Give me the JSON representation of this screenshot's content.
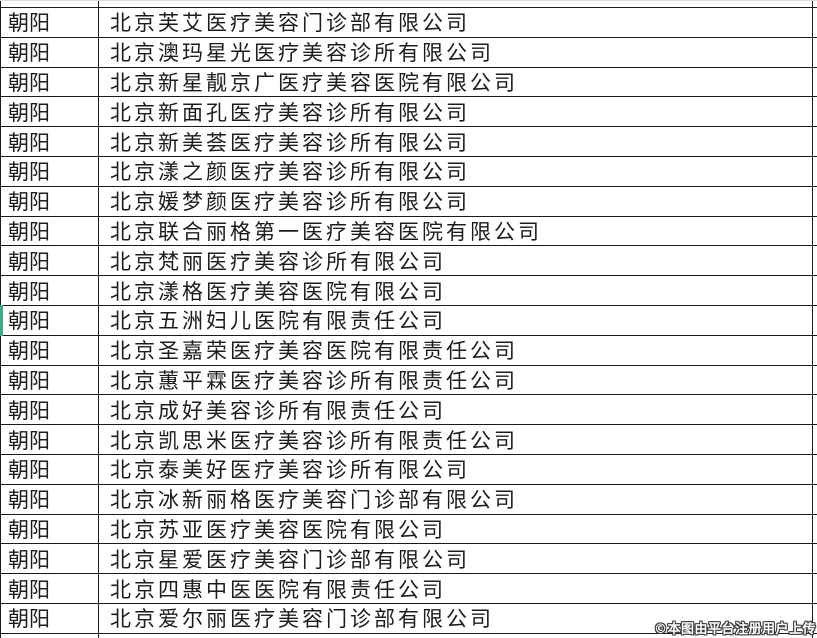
{
  "table": {
    "columns": [
      "district",
      "company_name"
    ],
    "district_repeated_value": "朝阳",
    "highlight_row_index": 10,
    "rows": [
      {
        "district": "朝阳",
        "company": "北京芙艾医疗美容门诊部有限公司"
      },
      {
        "district": "朝阳",
        "company": "北京澳玛星光医疗美容诊所有限公司"
      },
      {
        "district": "朝阳",
        "company": "北京新星靓京广医疗美容医院有限公司"
      },
      {
        "district": "朝阳",
        "company": "北京新面孔医疗美容诊所有限公司"
      },
      {
        "district": "朝阳",
        "company": "北京新美荟医疗美容诊所有限公司"
      },
      {
        "district": "朝阳",
        "company": "北京漾之颜医疗美容诊所有限公司"
      },
      {
        "district": "朝阳",
        "company": "北京媛梦颜医疗美容诊所有限公司"
      },
      {
        "district": "朝阳",
        "company": "北京联合丽格第一医疗美容医院有限公司"
      },
      {
        "district": "朝阳",
        "company": "北京梵丽医疗美容诊所有限公司"
      },
      {
        "district": "朝阳",
        "company": "北京漾格医疗美容医院有限公司"
      },
      {
        "district": "朝阳",
        "company": "北京五洲妇儿医院有限责任公司"
      },
      {
        "district": "朝阳",
        "company": "北京圣嘉荣医疗美容医院有限责任公司"
      },
      {
        "district": "朝阳",
        "company": "北京蕙平霖医疗美容诊所有限责任公司"
      },
      {
        "district": "朝阳",
        "company": "北京成好美容诊所有限责任公司"
      },
      {
        "district": "朝阳",
        "company": "北京凯思米医疗美容诊所有限责任公司"
      },
      {
        "district": "朝阳",
        "company": "北京泰美好医疗美容诊所有限公司"
      },
      {
        "district": "朝阳",
        "company": "北京冰新丽格医疗美容门诊部有限公司"
      },
      {
        "district": "朝阳",
        "company": "北京苏亚医疗美容医院有限公司"
      },
      {
        "district": "朝阳",
        "company": "北京星爱医疗美容门诊部有限公司"
      },
      {
        "district": "朝阳",
        "company": "北京四惠中医医院有限责任公司"
      },
      {
        "district": "朝阳",
        "company": "北京爱尔丽医疗美容门诊部有限公司"
      }
    ]
  },
  "watermark": {
    "text": "©本图由平台注册用户上传"
  },
  "colors": {
    "background": "#ffffff",
    "border": "#1a1a1a",
    "text": "#1c1c1c",
    "highlight_accent": "#3fa886",
    "watermark_fill": "#ffffff",
    "watermark_outline": "#3a3a3a"
  }
}
